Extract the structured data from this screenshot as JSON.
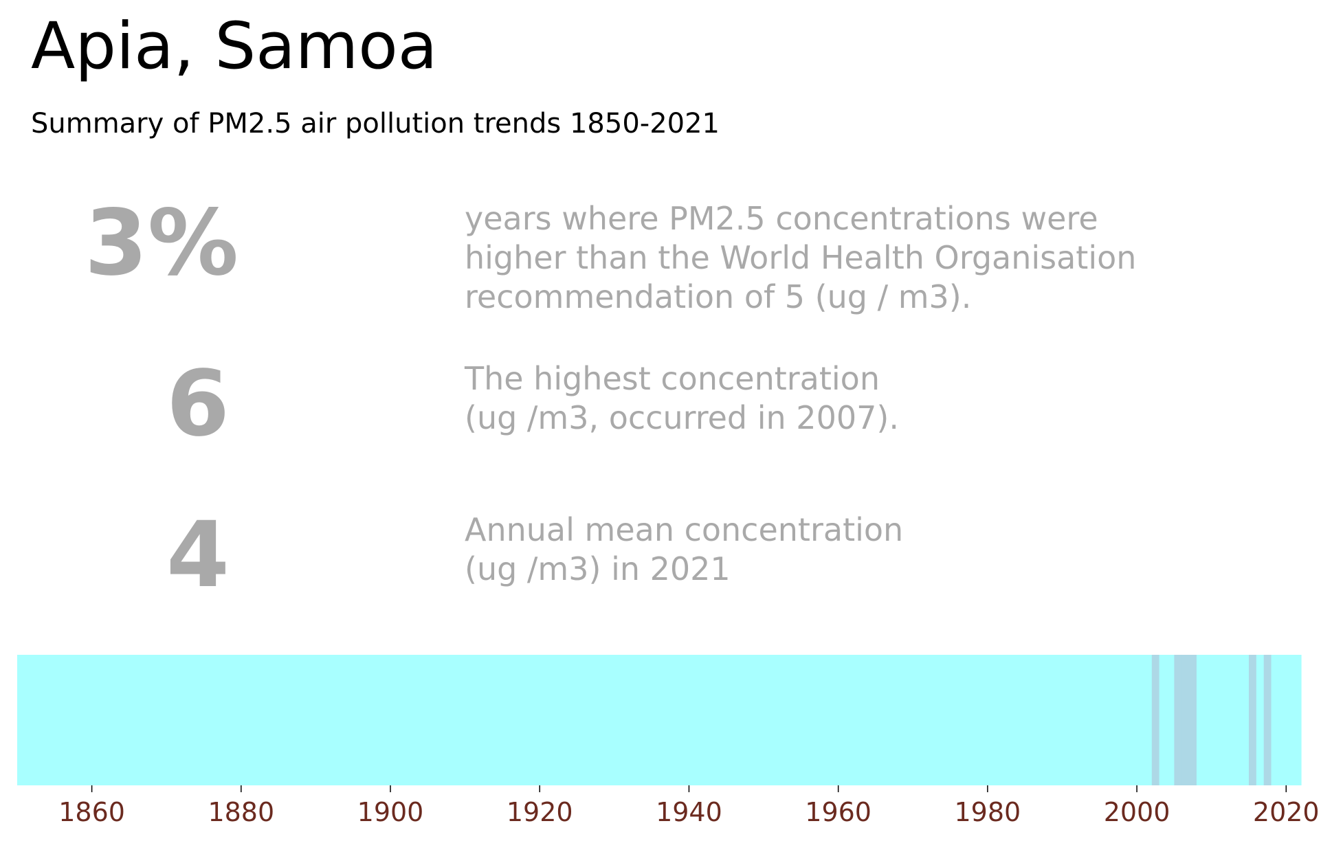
{
  "header": {
    "title": "Apia, Samoa",
    "subtitle": "Summary of PM2.5 air pollution trends 1850-2021"
  },
  "stats": [
    {
      "value": "3%",
      "lines": [
        "years where PM2.5 concentrations were",
        "higher than the World Health Organisation",
        "recommendation of 5 (ug / m3)."
      ]
    },
    {
      "value": "6",
      "lines": [
        "The highest concentration",
        "(ug /m3, occurred in 2007)."
      ]
    },
    {
      "value": "4",
      "lines": [
        "Annual mean concentration",
        "(ug /m3) in 2021"
      ]
    }
  ],
  "colors": {
    "stat_text": "#a9a9a9",
    "stripe_base": "#a8ffff",
    "stripe_high": "#add8e6",
    "tick_text": "#6b2a1f"
  },
  "chart_data": {
    "type": "heatmap",
    "title": "",
    "xlabel": "",
    "ylabel": "",
    "x_range": [
      1850,
      2022
    ],
    "years": [
      1850,
      2021
    ],
    "x_ticks": [
      1860,
      1880,
      1900,
      1920,
      1940,
      1960,
      1980,
      2000,
      2020
    ],
    "above_guideline_years": [
      2002,
      2005,
      2006,
      2007,
      2015,
      2017
    ],
    "grid": false,
    "legend": "none"
  }
}
